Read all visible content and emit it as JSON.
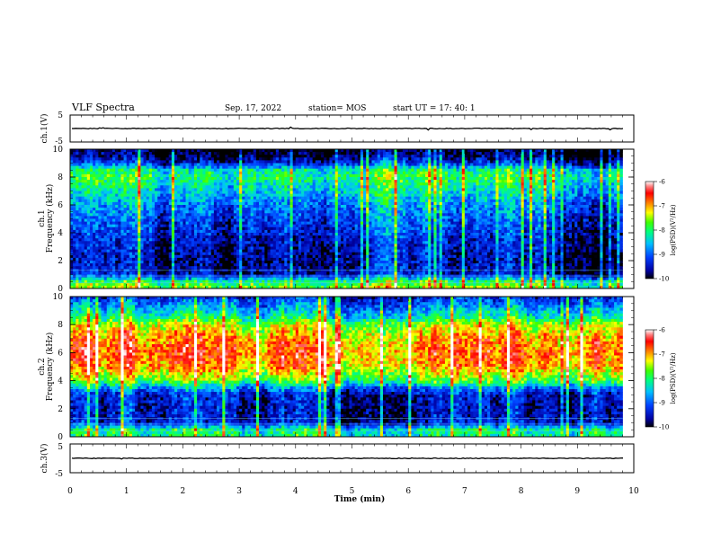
{
  "header": {
    "title": "VLF Spectra",
    "date": "Sep. 17, 2022",
    "station": "station= MOS",
    "start_ut": "start  UT  =   17: 40: 1"
  },
  "chart_data": [
    {
      "type": "line",
      "ylabel": "ch.1(V)",
      "ylim": [
        -5,
        5
      ],
      "y_ticks": [
        "5",
        "-5"
      ],
      "xlim": [
        0,
        10
      ],
      "baseline_value": 0
    },
    {
      "type": "heatmap",
      "ylabel_line1": "ch.1",
      "ylabel_line2": "Frequency (kHz)",
      "ylim": [
        0,
        10
      ],
      "y_ticks": [
        "0",
        "2",
        "4",
        "6",
        "8",
        "10"
      ],
      "xlim": [
        0,
        9.8
      ],
      "colorbar": {
        "label": "log(PSD)(V²/Hz)",
        "range": [
          -10,
          -6
        ],
        "ticks": [
          "-6",
          "-7",
          "-8",
          "-9",
          "-10"
        ]
      },
      "intensity_profile_freq_khz": [
        0,
        0.5,
        1,
        2,
        3,
        4,
        5,
        6,
        7,
        8,
        8.5,
        9,
        9.5,
        10
      ],
      "intensity_profile_logpsd": [
        -7.5,
        -8.0,
        -9.5,
        -9.6,
        -9.5,
        -9.3,
        -9.1,
        -8.8,
        -8.4,
        -8.0,
        -8.2,
        -9.3,
        -9.8,
        -10
      ]
    },
    {
      "type": "heatmap",
      "ylabel_line1": "ch.2",
      "ylabel_line2": "Frequency (kHz)",
      "ylim": [
        0,
        10
      ],
      "y_ticks": [
        "0",
        "2",
        "4",
        "6",
        "8",
        "10"
      ],
      "xlim": [
        0,
        9.8
      ],
      "colorbar": {
        "label": "log(PSD)(V²/Hz)",
        "range": [
          -10,
          -6
        ],
        "ticks": [
          "-6",
          "-7",
          "-8",
          "-9",
          "-10"
        ]
      },
      "intensity_profile_freq_khz": [
        0,
        0.5,
        1,
        2,
        3,
        3.5,
        4,
        5,
        6,
        7,
        8,
        8.5,
        9,
        9.5,
        10
      ],
      "intensity_profile_logpsd": [
        -8.2,
        -8.2,
        -9.5,
        -9.6,
        -9.5,
        -8.8,
        -7.8,
        -7.0,
        -6.8,
        -7.0,
        -7.5,
        -8.2,
        -8.6,
        -9.0,
        -9.4
      ]
    },
    {
      "type": "line",
      "ylabel": "ch.3(V)",
      "ylim": [
        -5,
        5
      ],
      "y_ticks": [
        "5",
        "-5"
      ],
      "xlim": [
        0,
        10
      ],
      "baseline_value": 0
    }
  ],
  "x_axis": {
    "label": "Time (min)",
    "ticks": [
      "0",
      "1",
      "2",
      "3",
      "4",
      "5",
      "6",
      "7",
      "8",
      "9",
      "10"
    ],
    "range": [
      0,
      10
    ]
  }
}
